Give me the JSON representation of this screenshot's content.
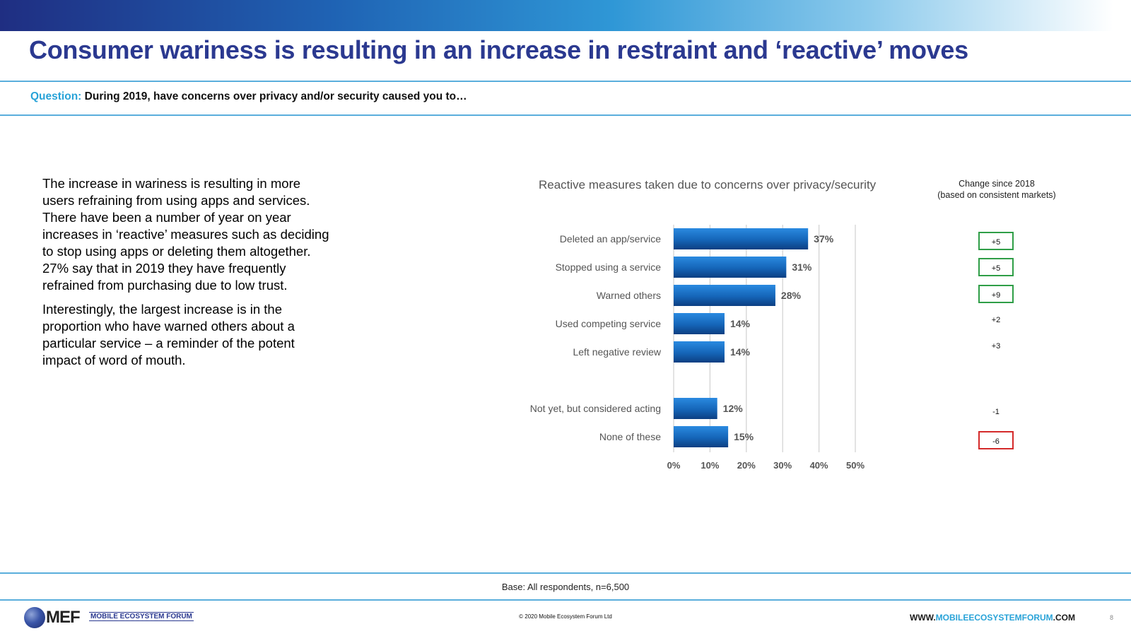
{
  "title": "Consumer wariness is resulting in an increase in restraint and ‘reactive’ moves",
  "question": {
    "label": "Question:",
    "text": "During 2019, have concerns over privacy and/or security caused you to…"
  },
  "body": {
    "paragraph1": "The increase in wariness is resulting in more users refraining from using apps and services. There have been a number of year on year increases in ‘reactive’ measures such as deciding to stop using apps or deleting them altogether. 27% say that in 2019 they have frequently refrained from purchasing due to low trust.",
    "paragraph2": "Interestingly, the largest increase is in the proportion who have warned others about a particular service – a reminder of the potent impact of word of mouth."
  },
  "chart_data": {
    "type": "bar",
    "orientation": "horizontal",
    "title": "Reactive measures taken due to concerns over privacy/security",
    "categories": [
      "Deleted an app/service",
      "Stopped using a service",
      "Warned others",
      "Used competing service",
      "Left negative review",
      "Not yet, but considered acting",
      "None of these"
    ],
    "values": [
      37,
      31,
      28,
      14,
      14,
      12,
      15
    ],
    "data_labels": [
      "37%",
      "31%",
      "28%",
      "14%",
      "14%",
      "12%",
      "15%"
    ],
    "xlim": [
      0,
      50
    ],
    "xticks": [
      "0%",
      "10%",
      "20%",
      "30%",
      "40%",
      "50%"
    ],
    "grid": true,
    "bar_color": "#1565b8"
  },
  "change": {
    "title_line1": "Change since 2018",
    "title_line2": "(based on consistent markets)",
    "items": [
      {
        "value": "+5",
        "highlight": "positive"
      },
      {
        "value": "+5",
        "highlight": "positive"
      },
      {
        "value": "+9",
        "highlight": "positive"
      },
      {
        "value": "+2",
        "highlight": "none"
      },
      {
        "value": "+3",
        "highlight": "none"
      },
      {
        "value": "-1",
        "highlight": "none"
      },
      {
        "value": "-6",
        "highlight": "negative"
      }
    ]
  },
  "footer": {
    "base": "Base: All respondents, n=6,500",
    "copyright": "© 2020 Mobile Ecosystem Forum Ltd",
    "website_prefix": "WWW.",
    "website_highlight": "MOBILEECOSYSTEMFORUM",
    "website_suffix": ".COM",
    "page_number": "8",
    "logo_text": "MEF",
    "logo_subtext": "MOBILE ECOSYSTEM FORUM"
  }
}
